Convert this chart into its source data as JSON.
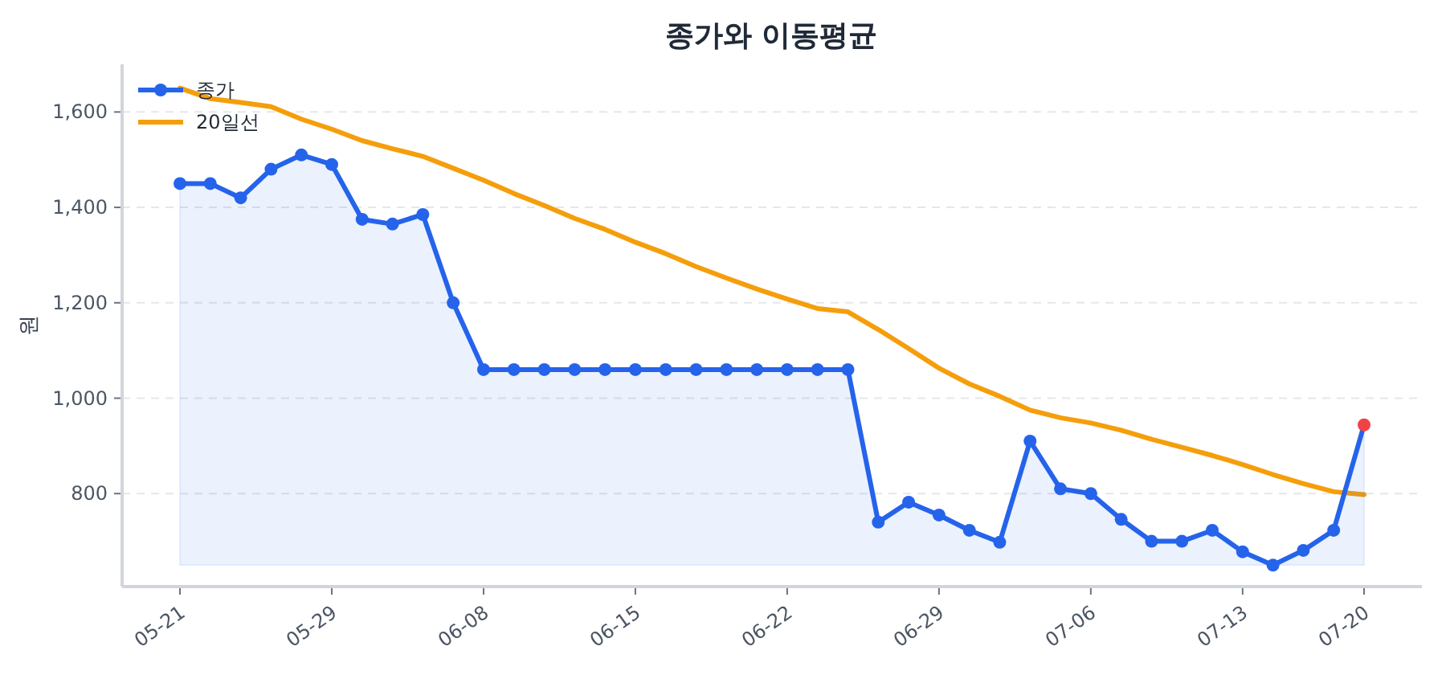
{
  "chart_data": {
    "type": "line",
    "title": "종가와 이동평균",
    "ylabel": "원",
    "categories": [
      "05-21",
      null,
      null,
      null,
      null,
      "05-29",
      null,
      null,
      null,
      null,
      "06-08",
      null,
      null,
      null,
      null,
      "06-15",
      null,
      null,
      null,
      null,
      "06-22",
      null,
      null,
      null,
      null,
      "06-29",
      null,
      null,
      null,
      null,
      "07-06",
      null,
      null,
      null,
      null,
      "07-13",
      null,
      null,
      null,
      "07-20"
    ],
    "series": [
      {
        "name": "종가",
        "type": "area",
        "marker": "circle",
        "color": "#2563eb",
        "colors": [
          "#2563eb",
          "#2563eb",
          "#2563eb",
          "#2563eb",
          "#2563eb",
          "#2563eb",
          "#2563eb",
          "#2563eb",
          "#2563eb",
          "#2563eb",
          "#2563eb",
          "#2563eb",
          "#2563eb",
          "#2563eb",
          "#2563eb",
          "#2563eb",
          "#2563eb",
          "#2563eb",
          "#2563eb",
          "#2563eb",
          "#2563eb",
          "#2563eb",
          "#2563eb",
          "#2563eb",
          "#2563eb",
          "#2563eb",
          "#2563eb",
          "#2563eb",
          "#2563eb",
          "#2563eb",
          "#2563eb",
          "#2563eb",
          "#2563eb",
          "#2563eb",
          "#2563eb",
          "#2563eb",
          "#2563eb",
          "#2563eb",
          "#2563eb",
          "#ef4444"
        ],
        "values": [
          1450,
          1450,
          1420,
          1480,
          1510,
          1490,
          1375,
          1365,
          1385,
          1200,
          1060,
          1060,
          1060,
          1060,
          1060,
          1060,
          1060,
          1060,
          1060,
          1060,
          1060,
          1060,
          1060,
          740,
          782,
          755,
          723,
          698,
          910,
          810,
          800,
          746,
          700,
          700,
          723,
          678,
          650,
          681,
          723,
          944
        ]
      },
      {
        "name": "20일선",
        "type": "line",
        "marker": "none",
        "color": "#f59e0b",
        "values": [
          1650,
          1628,
          1620,
          1611,
          1585,
          1564,
          1540,
          1523,
          1507,
          1482,
          1457,
          1429,
          1404,
          1377,
          1354,
          1327,
          1303,
          1276,
          1252,
          1229,
          1208,
          1188,
          1181,
          1144,
          1104,
          1063,
          1030,
          1004,
          975,
          959,
          948,
          933,
          914,
          897,
          880,
          861,
          840,
          821,
          804,
          798
        ]
      }
    ],
    "ylim": [
      605,
      1700
    ],
    "yticks": [
      800,
      {
        "value": 1000,
        "label": "1,000"
      },
      {
        "value": 1200,
        "label": "1,200"
      },
      {
        "value": 1400,
        "label": "1,400"
      },
      {
        "value": 1600,
        "label": "1,600"
      }
    ],
    "grid": "y",
    "legend": "top left",
    "line_style": "solid"
  }
}
